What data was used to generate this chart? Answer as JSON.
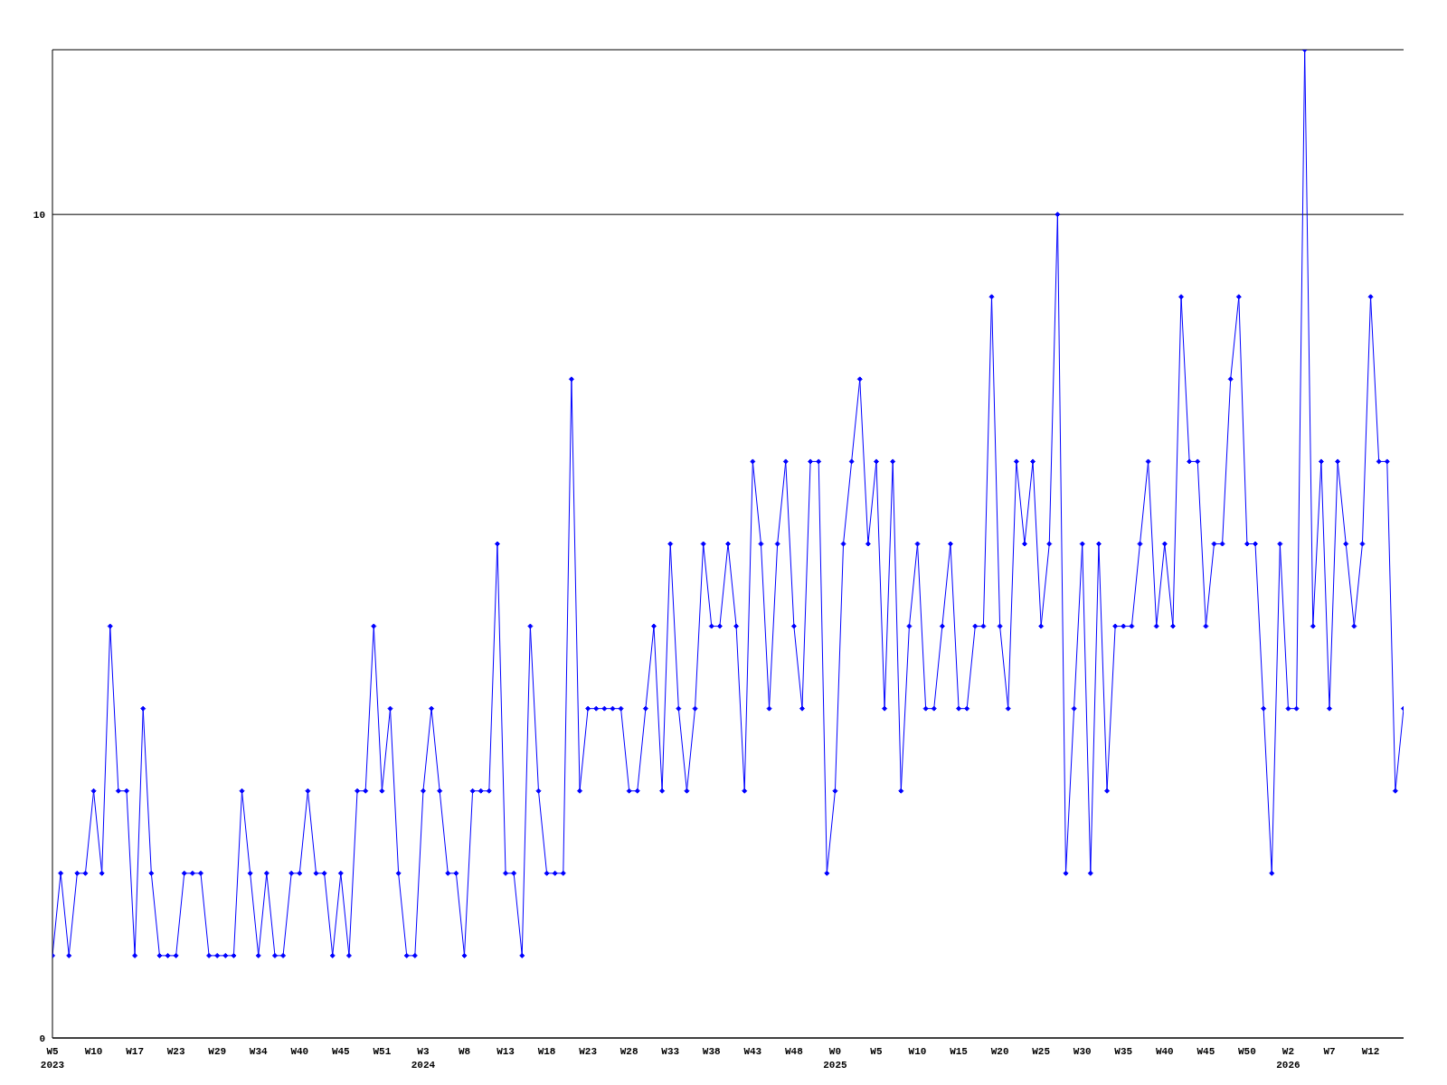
{
  "chart_data": {
    "type": "line",
    "categories": [
      "W5\n2023",
      null,
      null,
      null,
      null,
      "W10",
      null,
      null,
      null,
      null,
      "W17",
      null,
      null,
      null,
      null,
      "W23",
      null,
      null,
      null,
      null,
      "W29",
      null,
      null,
      null,
      null,
      "W34",
      null,
      null,
      null,
      null,
      "W40",
      null,
      null,
      null,
      null,
      "W45",
      null,
      null,
      null,
      null,
      "W51",
      null,
      null,
      null,
      null,
      "W3\n2024",
      null,
      null,
      null,
      null,
      "W8",
      null,
      null,
      null,
      null,
      "W13",
      null,
      null,
      null,
      null,
      "W18",
      null,
      null,
      null,
      null,
      "W23",
      null,
      null,
      null,
      null,
      "W28",
      null,
      null,
      null,
      null,
      "W33",
      null,
      null,
      null,
      null,
      "W38",
      null,
      null,
      null,
      null,
      "W43",
      null,
      null,
      null,
      null,
      "W48",
      null,
      null,
      null,
      null,
      "W0\n2025",
      null,
      null,
      null,
      null,
      "W5",
      null,
      null,
      null,
      null,
      "W10",
      null,
      null,
      null,
      null,
      "W15",
      null,
      null,
      null,
      null,
      "W20",
      null,
      null,
      null,
      null,
      "W25",
      null,
      null,
      null,
      null,
      "W30",
      null,
      null,
      null,
      null,
      "W35",
      null,
      null,
      null,
      null,
      "W40",
      null,
      null,
      null,
      null,
      "W45",
      null,
      null,
      null,
      null,
      "W50",
      null,
      null,
      null,
      null,
      "W2\n2026",
      null,
      null,
      null,
      null,
      "W7",
      null,
      null,
      null,
      null,
      "W12",
      null,
      null,
      null,
      null
    ],
    "series": [
      {
        "color": "#0000ff",
        "values": [
          1,
          2,
          1,
          2,
          2,
          3,
          2,
          5,
          3,
          3,
          1,
          4,
          2,
          1,
          1,
          1,
          2,
          2,
          2,
          1,
          1,
          1,
          1,
          3,
          2,
          1,
          2,
          1,
          1,
          2,
          2,
          3,
          2,
          2,
          1,
          2,
          1,
          3,
          3,
          5,
          3,
          4,
          2,
          1,
          1,
          3,
          4,
          3,
          2,
          2,
          1,
          3,
          3,
          3,
          6,
          2,
          2,
          1,
          5,
          3,
          2,
          2,
          2,
          8,
          3,
          4,
          4,
          4,
          4,
          4,
          3,
          3,
          4,
          5,
          3,
          6,
          4,
          3,
          4,
          6,
          5,
          5,
          6,
          5,
          3,
          7,
          6,
          4,
          6,
          7,
          5,
          4,
          7,
          7,
          2,
          3,
          6,
          7,
          8,
          6,
          7,
          4,
          7,
          3,
          5,
          6,
          4,
          4,
          5,
          6,
          4,
          4,
          5,
          5,
          9,
          5,
          4,
          7,
          6,
          7,
          5,
          6,
          10,
          2,
          4,
          6,
          2,
          6,
          3,
          5,
          5,
          5,
          6,
          7,
          5,
          6,
          5,
          9,
          7,
          7,
          5,
          6,
          6,
          8,
          9,
          6,
          6,
          4,
          2,
          6,
          4,
          4,
          12,
          5,
          7,
          4,
          7,
          6,
          5,
          6,
          9,
          7,
          7,
          3,
          4
        ]
      }
    ],
    "ylim": [
      0,
      12
    ],
    "yticks": [
      0,
      10
    ],
    "grid": "y",
    "legend": false,
    "marker": "diamond",
    "line_style": "solid"
  }
}
